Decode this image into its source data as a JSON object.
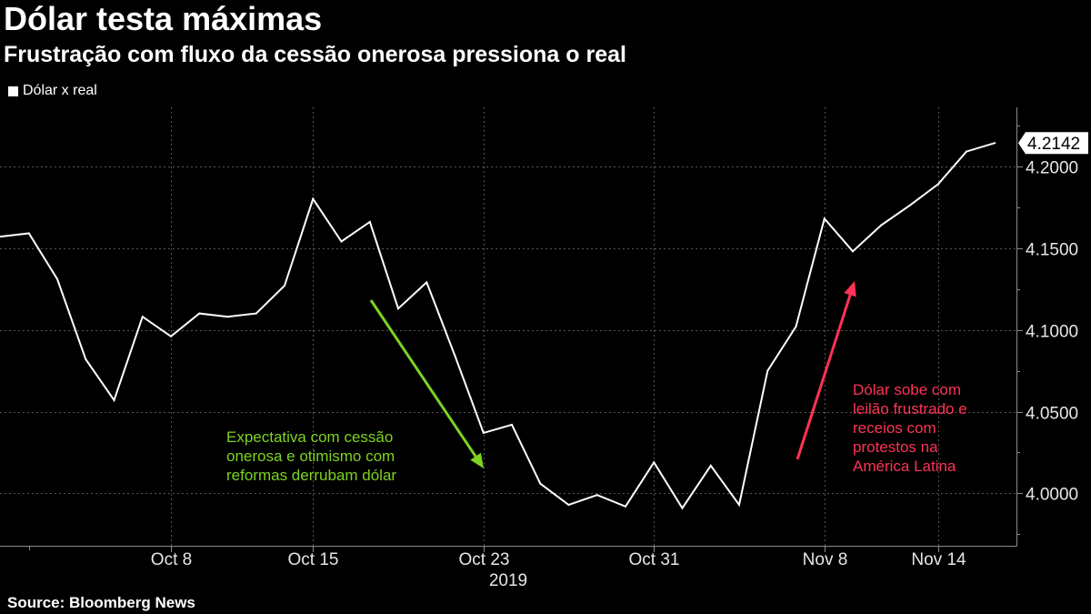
{
  "chart_data": {
    "type": "line",
    "title": "Dólar testa máximas",
    "subtitle": "Frustração com fluxo da cessão onerosa pressiona o real",
    "legend_position": "top-left",
    "y_axis_side": "right",
    "grid": true,
    "x": [
      "2019-09-30",
      "2019-10-01",
      "2019-10-02",
      "2019-10-03",
      "2019-10-04",
      "2019-10-07",
      "2019-10-08",
      "2019-10-09",
      "2019-10-10",
      "2019-10-11",
      "2019-10-14",
      "2019-10-15",
      "2019-10-16",
      "2019-10-17",
      "2019-10-18",
      "2019-10-21",
      "2019-10-22",
      "2019-10-23",
      "2019-10-24",
      "2019-10-25",
      "2019-10-28",
      "2019-10-29",
      "2019-10-30",
      "2019-10-31",
      "2019-11-01",
      "2019-11-04",
      "2019-11-05",
      "2019-11-06",
      "2019-11-07",
      "2019-11-08",
      "2019-11-11",
      "2019-11-12",
      "2019-11-13",
      "2019-11-14",
      "2019-11-15",
      "2019-11-18"
    ],
    "series": [
      {
        "name": "Dólar x real",
        "color": "#ffffff",
        "values": [
          4.157,
          4.159,
          4.131,
          4.082,
          4.057,
          4.108,
          4.096,
          4.11,
          4.108,
          4.11,
          4.127,
          4.18,
          4.154,
          4.166,
          4.113,
          4.129,
          4.084,
          4.037,
          4.042,
          4.006,
          3.993,
          3.999,
          3.992,
          4.019,
          3.991,
          4.017,
          3.993,
          4.075,
          4.102,
          4.168,
          4.148,
          4.164,
          4.176,
          4.189,
          4.209,
          4.2142
        ]
      }
    ],
    "x_ticks": [
      {
        "date": "2019-10-08",
        "label": "Oct 8"
      },
      {
        "date": "2019-10-15",
        "label": "Oct 15"
      },
      {
        "date": "2019-10-23",
        "label": "Oct 23"
      },
      {
        "date": "2019-10-31",
        "label": "Oct 31"
      },
      {
        "date": "2019-11-08",
        "label": "Nov 8"
      },
      {
        "date": "2019-11-14",
        "label": "Nov 14"
      }
    ],
    "x_year_label": "2019",
    "y_ticks": [
      {
        "value": 4.0,
        "label": "4.0000"
      },
      {
        "value": 4.05,
        "label": "4.0500"
      },
      {
        "value": 4.1,
        "label": "4.1000"
      },
      {
        "value": 4.15,
        "label": "4.1500"
      },
      {
        "value": 4.2,
        "label": "4.2000"
      }
    ],
    "ylim": [
      3.968,
      4.236
    ],
    "last_value_label": "4.2142",
    "annotations": [
      {
        "color": "#7ed321",
        "lines": [
          "Expectativa com cessão",
          "onerosa e otimismo com",
          "reformas derrubam dólar"
        ]
      },
      {
        "color": "#ff3355",
        "lines": [
          "Dólar sobe com",
          "leilão frustrado e",
          "receios com",
          "protestos na",
          "América Latina"
        ]
      }
    ],
    "source": "Source: Bloomberg News",
    "colors": {
      "background": "#000000",
      "line": "#ffffff"
    }
  }
}
